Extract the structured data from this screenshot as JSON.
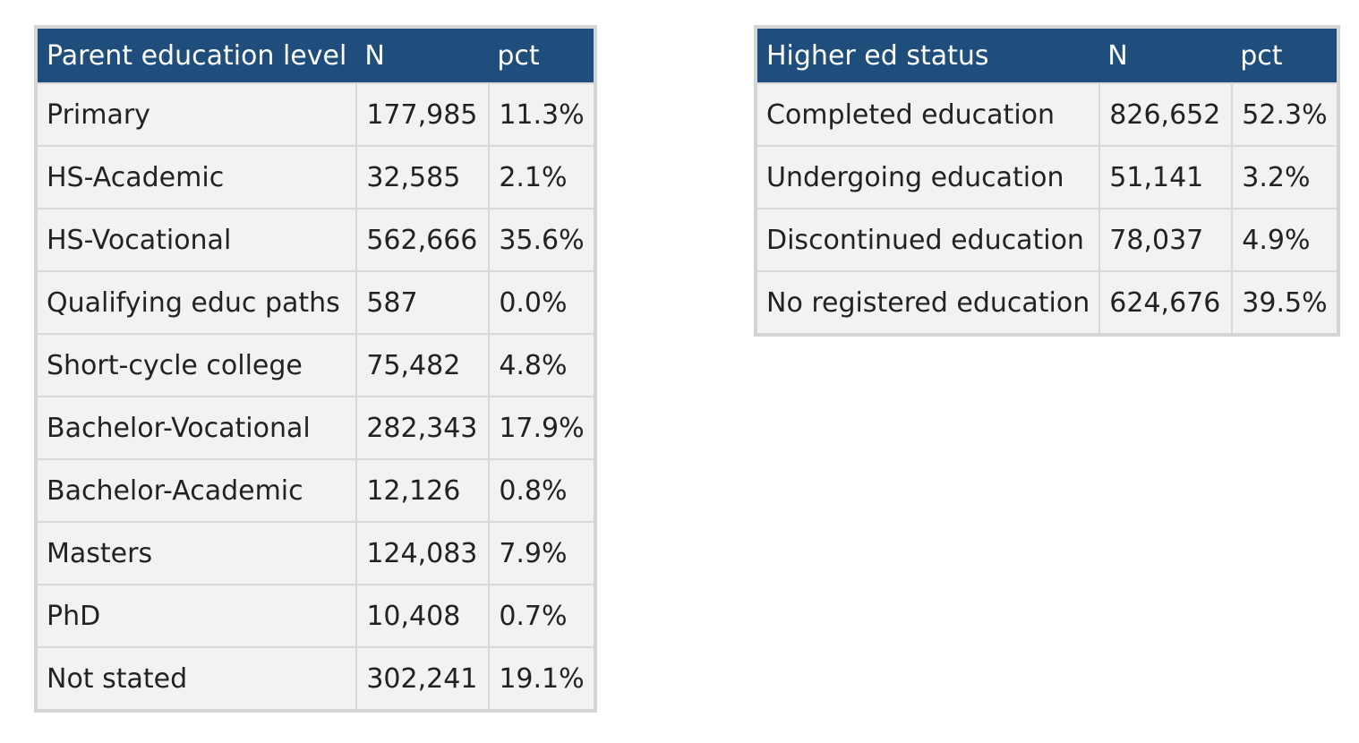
{
  "parent_education_table": {
    "headers": [
      "Parent education level",
      "N",
      "pct"
    ],
    "rows": [
      [
        "Primary",
        "177,985",
        "11.3%"
      ],
      [
        "HS-Academic",
        "32,585",
        "2.1%"
      ],
      [
        "HS-Vocational",
        "562,666",
        "35.6%"
      ],
      [
        "Qualifying educ paths",
        "587",
        "0.0%"
      ],
      [
        "Short-cycle college",
        "75,482",
        "4.8%"
      ],
      [
        "Bachelor-Vocational",
        "282,343",
        "17.9%"
      ],
      [
        "Bachelor-Academic",
        "12,126",
        "0.8%"
      ],
      [
        "Masters",
        "124,083",
        "7.9%"
      ],
      [
        "PhD",
        "10,408",
        "0.7%"
      ],
      [
        "Not stated",
        "302,241",
        "19.1%"
      ]
    ]
  },
  "higher_ed_table": {
    "headers": [
      "Higher ed status",
      "N",
      "pct"
    ],
    "rows": [
      [
        "Completed education",
        "826,652",
        "52.3%"
      ],
      [
        "Undergoing education",
        "51,141",
        "3.2%"
      ],
      [
        "Discontinued education",
        "78,037",
        "4.9%"
      ],
      [
        "No registered education",
        "624,676",
        "39.5%"
      ]
    ]
  },
  "colors": {
    "header_bg": "#1f4e7d",
    "header_text": "#ffffff",
    "cell_bg": "#f2f2f2",
    "frame": "#d4d4d4"
  }
}
